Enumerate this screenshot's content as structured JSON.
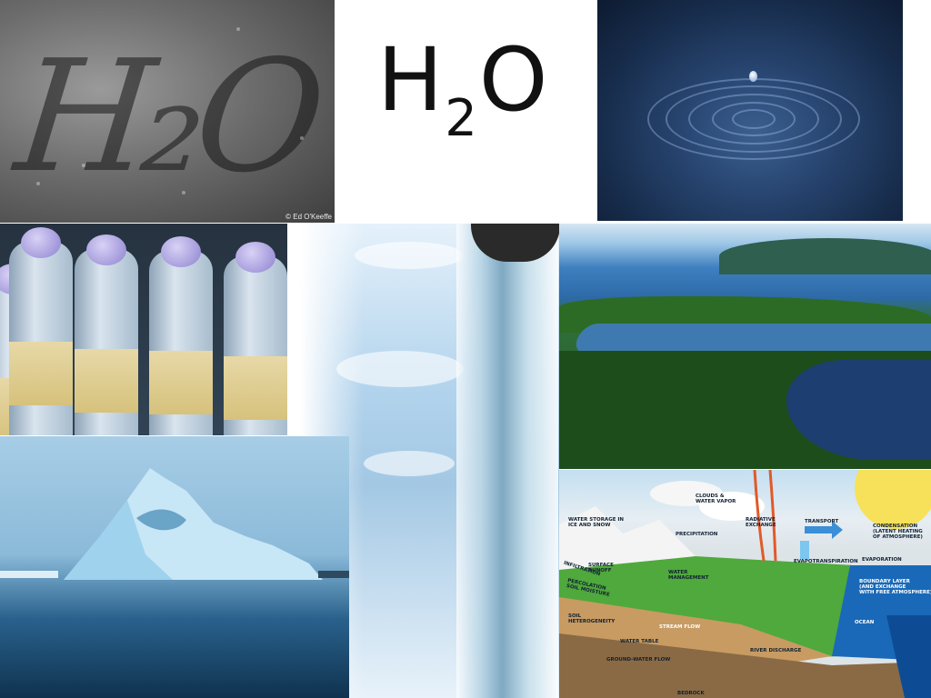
{
  "title": {
    "main": "H",
    "subscript": "2",
    "end": "O"
  },
  "photo_credit": "© Ed O'Keeffe",
  "water_cycle": {
    "labels": {
      "clouds": "CLOUDS &\nWATER VAPOR",
      "water_storage": "WATER STORAGE IN\nICE AND SNOW",
      "precipitation": "PRECIPITATION",
      "radiative": "RADIATIVE\nEXCHANGE",
      "transport": "TRANSPORT",
      "condensation": "CONDENSATION\n(LATENT HEATING\nOF ATMOSPHERE)",
      "evaporation": "EVAPORATION",
      "evapotranspiration": "EVAPOTRANSPIRATION",
      "surface_runoff": "SURFACE\nRUNOFF",
      "infiltration": "INFILTRATION",
      "water_management": "WATER\nMANAGEMENT",
      "boundary_layer": "BOUNDARY LAYER\n(AND EXCHANGE\nWITH FREE ATMOSPHERE)",
      "percolation": "PERCOLATION\nSOIL MOISTURE",
      "soil_heterogeneity": "SOIL\nHETEROGENEITY",
      "stream_flow": "STREAM FLOW",
      "ocean": "OCEAN",
      "water_table": "WATER TABLE",
      "river_discharge": "RIVER DISCHARGE",
      "groundwater_flow": "GROUND-WATER FLOW",
      "bedrock": "BEDROCK"
    }
  }
}
